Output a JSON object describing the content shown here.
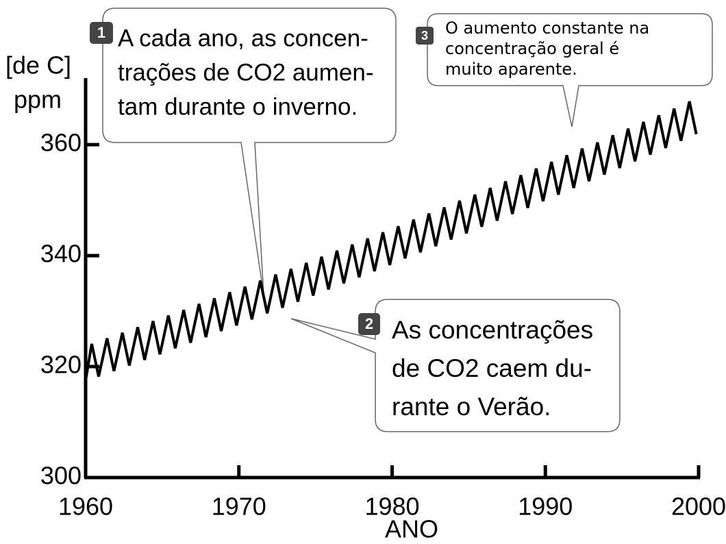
{
  "chart_data": {
    "type": "line",
    "y_label": [
      "[de C]",
      "ppm"
    ],
    "x_label": "ANO",
    "xlim": [
      1960,
      2000
    ],
    "xticks": [
      1960,
      1970,
      1980,
      1990,
      2000
    ],
    "ylim": [
      300,
      372
    ],
    "yticks": [
      300,
      320,
      340,
      360
    ],
    "series": [
      {
        "color": "#000000",
        "x": [
          1960,
          1960.4,
          1960.85,
          1961.4,
          1961.85,
          1962.4,
          1962.85,
          1963.4,
          1963.85,
          1964.4,
          1964.85,
          1965.4,
          1965.85,
          1966.4,
          1966.85,
          1967.4,
          1967.85,
          1968.4,
          1968.85,
          1969.4,
          1969.85,
          1970.4,
          1970.85,
          1971.4,
          1971.85,
          1972.4,
          1972.85,
          1973.4,
          1973.85,
          1974.4,
          1974.85,
          1975.4,
          1975.85,
          1976.4,
          1976.85,
          1977.4,
          1977.85,
          1978.4,
          1978.85,
          1979.4,
          1979.85,
          1980.4,
          1980.85,
          1981.4,
          1981.85,
          1982.4,
          1982.85,
          1983.4,
          1983.85,
          1984.4,
          1984.85,
          1985.4,
          1985.85,
          1986.4,
          1986.85,
          1987.4,
          1987.85,
          1988.4,
          1988.85,
          1989.4,
          1989.85,
          1990.4,
          1990.85,
          1991.4,
          1991.85,
          1992.4,
          1992.85,
          1993.4,
          1993.85,
          1994.4,
          1994.85,
          1995.4,
          1995.85,
          1996.4,
          1996.85,
          1997.4,
          1997.85,
          1998.4,
          1998.85,
          1999.4,
          1999.85
        ],
        "values": [
          317.5,
          324.1,
          318.2,
          325.1,
          319.2,
          326.1,
          320.2,
          327.1,
          321.2,
          328.2,
          322.2,
          329.2,
          323.3,
          330.2,
          324.3,
          331.3,
          325.3,
          332.3,
          326.4,
          333.4,
          327.4,
          334.4,
          328.5,
          335.5,
          329.6,
          336.6,
          330.6,
          337.6,
          331.7,
          338.7,
          332.8,
          339.8,
          333.9,
          340.9,
          335.0,
          342.0,
          336.1,
          343.1,
          337.2,
          344.2,
          338.3,
          345.3,
          339.5,
          346.5,
          340.6,
          347.6,
          341.7,
          348.7,
          342.9,
          349.9,
          344.0,
          351.0,
          345.2,
          352.2,
          346.3,
          353.4,
          347.5,
          354.5,
          348.6,
          355.7,
          349.8,
          356.9,
          351.0,
          358.1,
          352.2,
          359.3,
          353.4,
          360.4,
          354.6,
          361.7,
          355.8,
          362.9,
          357.0,
          364.1,
          358.2,
          365.3,
          359.4,
          366.5,
          360.7,
          367.8,
          361.9
        ]
      }
    ],
    "annotations": [
      {
        "number": 1,
        "lines": [
          "A cada ano, as concen-",
          "trações de CO2 aumen-",
          "tam durante o inverno."
        ]
      },
      {
        "number": 2,
        "lines": [
          "As concentrações",
          "de CO2 caem du-",
          "rante o Verão."
        ]
      },
      {
        "number": 3,
        "lines": [
          "O aumento constante na",
          "concentração geral é",
          "muito aparente."
        ]
      }
    ]
  }
}
